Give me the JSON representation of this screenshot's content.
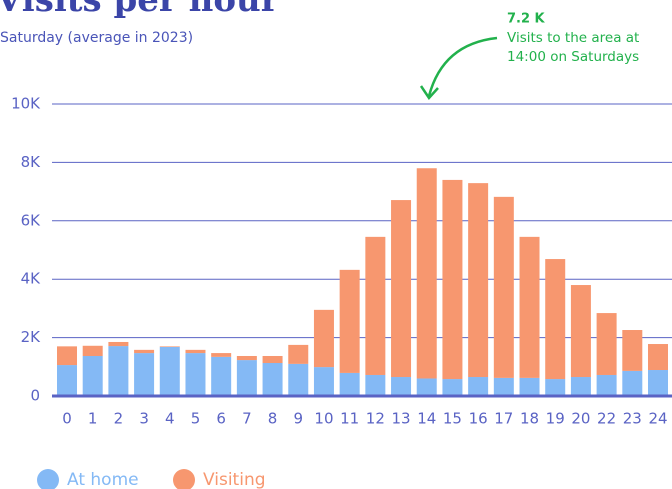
{
  "chart_data": {
    "type": "stacked_bar",
    "title": "Visits per hour",
    "subtitle": "Saturday (average in 2023)",
    "annotations": [
      "7.2 K",
      "Visits to the area at",
      "14:00 on Saturdays"
    ],
    "categories": [
      "0",
      "1",
      "2",
      "3",
      "4",
      "5",
      "6",
      "7",
      "8",
      "9",
      "10",
      "11",
      "12",
      "13",
      "14",
      "15",
      "16",
      "17",
      "18",
      "19",
      "20",
      "22",
      "23",
      "24"
    ],
    "series": [
      {
        "name": "At home",
        "color": "#84b9f5",
        "values": [
          1060,
          1370,
          1710,
          1470,
          1680,
          1470,
          1340,
          1230,
          1130,
          1100,
          990,
          790,
          720,
          650,
          600,
          580,
          650,
          620,
          620,
          580,
          650,
          720,
          860,
          890
        ]
      },
      {
        "name": "Visiting",
        "color": "#f7976f",
        "values": [
          640,
          350,
          140,
          110,
          20,
          110,
          130,
          140,
          240,
          650,
          1960,
          3530,
          4730,
          6060,
          7200,
          6820,
          6640,
          6200,
          4830,
          4110,
          3150,
          2120,
          1400,
          890
        ]
      }
    ],
    "ylim": [
      0,
      10000
    ],
    "yticks": [
      0,
      {
        "value": 2000,
        "label": "2K"
      },
      {
        "value": 4000,
        "label": "4K"
      },
      {
        "value": 6000,
        "label": "6K"
      },
      {
        "value": 8000,
        "label": "8K"
      },
      {
        "value": 10000,
        "label": "10K"
      }
    ],
    "grid": true,
    "legend": "bottom"
  }
}
